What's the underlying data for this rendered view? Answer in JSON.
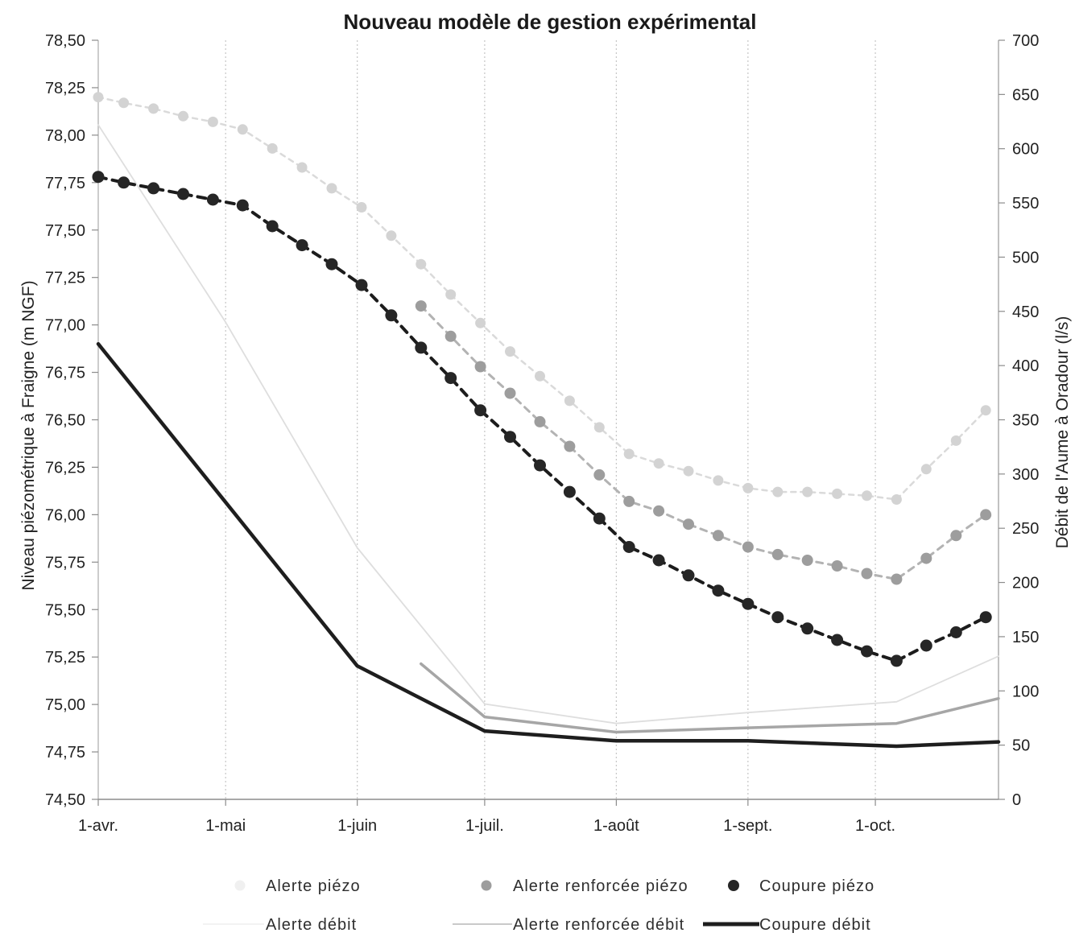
{
  "chart_data": {
    "type": "line",
    "title": "Nouveau modèle de gestion expérimental",
    "ylabel": "Niveau piézométrique à Fraigne (m NGF)",
    "y2label": "Débit de l'Aume à Oradour (l/s)",
    "x_axis": {
      "type": "date",
      "range": [
        "01/04",
        "30/10"
      ],
      "ticks": [
        {
          "date": "01/04",
          "label": "1-avr."
        },
        {
          "date": "01/05",
          "label": "1-mai"
        },
        {
          "date": "01/06",
          "label": "1-juin"
        },
        {
          "date": "01/07",
          "label": "1-juil."
        },
        {
          "date": "01/08",
          "label": "1-août"
        },
        {
          "date": "01/09",
          "label": "1-sept."
        },
        {
          "date": "01/10",
          "label": "1-oct."
        }
      ]
    },
    "y_axis": {
      "range": [
        74.5,
        78.5
      ],
      "step": 0.25,
      "ticks": [
        "74,50",
        "74,75",
        "75,00",
        "75,25",
        "75,50",
        "75,75",
        "76,00",
        "76,25",
        "76,50",
        "76,75",
        "77,00",
        "77,25",
        "77,50",
        "77,75",
        "78,00",
        "78,25",
        "78,50"
      ]
    },
    "y2_axis": {
      "range": [
        0,
        700
      ],
      "step": 50,
      "ticks": [
        "0",
        "50",
        "100",
        "150",
        "200",
        "250",
        "300",
        "350",
        "400",
        "450",
        "500",
        "550",
        "600",
        "650",
        "700"
      ]
    },
    "grid": {
      "vertical": true,
      "horizontal": false
    },
    "legend_position": "bottom",
    "series": [
      {
        "name": "Alerte piézo",
        "axis": "left",
        "color": "#dadada",
        "marker_color": "#d3d3d3",
        "x": [
          "01/04",
          "07/04",
          "14/04",
          "21/04",
          "28/04",
          "05/05",
          "12/05",
          "19/05",
          "26/05",
          "02/06",
          "09/06",
          "16/06",
          "23/06",
          "30/06",
          "07/07",
          "14/07",
          "21/07",
          "28/07",
          "04/08",
          "11/08",
          "18/08",
          "25/08",
          "01/09",
          "08/09",
          "15/09",
          "22/09",
          "29/09",
          "06/10",
          "13/10",
          "20/10",
          "27/10"
        ],
        "y": [
          78.2,
          78.17,
          78.14,
          78.1,
          78.07,
          78.03,
          77.93,
          77.83,
          77.72,
          77.62,
          77.47,
          77.32,
          77.16,
          77.01,
          76.86,
          76.73,
          76.6,
          76.46,
          76.32,
          76.27,
          76.23,
          76.18,
          76.14,
          76.12,
          76.12,
          76.11,
          76.1,
          76.08,
          76.24,
          76.39,
          76.55
        ]
      },
      {
        "name": "Alerte renforcée piézo",
        "axis": "left",
        "color": "#b3b3b3",
        "marker_color": "#9d9d9d",
        "x": [
          "16/06",
          "23/06",
          "30/06",
          "07/07",
          "14/07",
          "21/07",
          "28/07",
          "04/08",
          "11/08",
          "18/08",
          "25/08",
          "01/09",
          "08/09",
          "15/09",
          "22/09",
          "29/09",
          "06/10",
          "13/10",
          "20/10",
          "27/10"
        ],
        "y": [
          77.1,
          76.94,
          76.78,
          76.64,
          76.49,
          76.36,
          76.21,
          76.07,
          76.02,
          75.95,
          75.89,
          75.83,
          75.79,
          75.76,
          75.73,
          75.69,
          75.66,
          75.77,
          75.89,
          76.0
        ]
      },
      {
        "name": "Coupure piézo",
        "axis": "left",
        "color": "#1c1c1c",
        "marker_color": "#262626",
        "x": [
          "01/04",
          "07/04",
          "14/04",
          "21/04",
          "28/04",
          "05/05",
          "12/05",
          "19/05",
          "26/05",
          "02/06",
          "09/06",
          "16/06",
          "23/06",
          "30/06",
          "07/07",
          "14/07",
          "21/07",
          "28/07",
          "04/08",
          "11/08",
          "18/08",
          "25/08",
          "01/09",
          "08/09",
          "15/09",
          "22/09",
          "29/09",
          "06/10",
          "13/10",
          "20/10",
          "27/10"
        ],
        "y": [
          77.78,
          77.75,
          77.72,
          77.69,
          77.66,
          77.63,
          77.52,
          77.42,
          77.32,
          77.21,
          77.05,
          76.88,
          76.72,
          76.55,
          76.41,
          76.26,
          76.12,
          75.98,
          75.83,
          75.76,
          75.68,
          75.6,
          75.53,
          75.46,
          75.4,
          75.34,
          75.28,
          75.23,
          75.31,
          75.38,
          75.46
        ]
      },
      {
        "name": "Alerte débit",
        "axis": "right",
        "color": "#dedede",
        "x": [
          "01/04",
          "01/05",
          "01/06",
          "01/07",
          "01/08",
          "01/09",
          "06/10",
          "30/10"
        ],
        "y": [
          622,
          440,
          232,
          88,
          70,
          80,
          90,
          132
        ]
      },
      {
        "name": "Alerte renforcée débit",
        "axis": "right",
        "color": "#a6a6a6",
        "x": [
          "16/06",
          "01/07",
          "01/08",
          "01/09",
          "06/10",
          "30/10"
        ],
        "y": [
          125,
          76,
          62,
          66,
          70,
          93
        ]
      },
      {
        "name": "Coupure débit",
        "axis": "right",
        "color": "#1e1e1e",
        "x": [
          "01/04",
          "01/06",
          "01/07",
          "01/08",
          "01/09",
          "06/10",
          "30/10"
        ],
        "y": [
          420,
          123,
          63,
          54,
          54,
          49,
          53
        ]
      }
    ]
  }
}
